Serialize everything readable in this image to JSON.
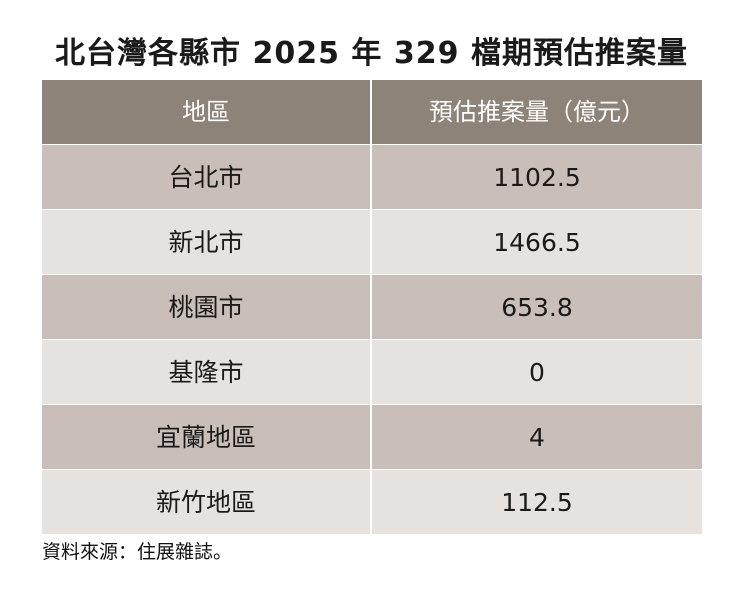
{
  "chart_data": {
    "type": "table",
    "title": "北台灣各縣市 2025 年 329 檔期預估推案量",
    "columns": [
      "地區",
      "預估推案量（億元）"
    ],
    "rows": [
      [
        "台北市",
        "1102.5"
      ],
      [
        "新北市",
        "1466.5"
      ],
      [
        "桃園市",
        "653.8"
      ],
      [
        "基隆市",
        "0"
      ],
      [
        "宜蘭地區",
        "4"
      ],
      [
        "新竹地區",
        "112.5"
      ]
    ],
    "source": "資料來源：住展雜誌。"
  },
  "colors": {
    "header_bg": "#8e8379",
    "row_dark": "#c9bfb8",
    "row_light": "#e5e2df"
  }
}
